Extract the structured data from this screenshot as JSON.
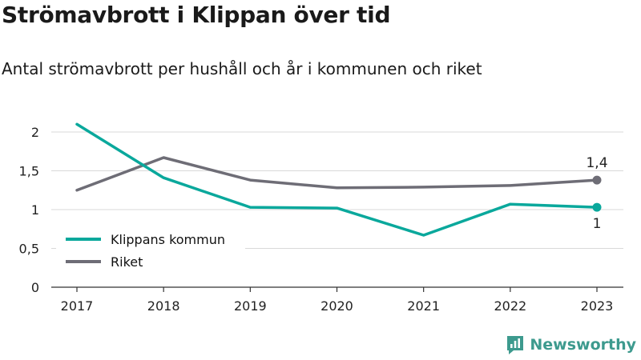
{
  "header": {
    "title": "Strömavbrott i Klippan över tid",
    "subtitle": "Antal strömavbrott per hushåll och år i kommunen och riket"
  },
  "brand": {
    "name": "Newsworthy",
    "icon": "newsworthy-logo-icon",
    "color": "#3d9a8e"
  },
  "chart_data": {
    "type": "line",
    "title": "Strömavbrott i Klippan över tid",
    "subtitle": "Antal strömavbrott per hushåll och år i kommunen och riket",
    "xlabel": "",
    "ylabel": "",
    "x": [
      "2017",
      "2018",
      "2019",
      "2020",
      "2021",
      "2022",
      "2023"
    ],
    "ylim": [
      0,
      2
    ],
    "y_ticks": [
      0,
      0.5,
      1,
      1.5,
      2
    ],
    "y_tick_labels": [
      "0",
      "0,5",
      "1",
      "1,5",
      "2"
    ],
    "grid": true,
    "legend_position": "bottom-left",
    "series": [
      {
        "name": "Klippans kommun",
        "color": "#0aa89c",
        "values": [
          2.1,
          1.41,
          1.03,
          1.02,
          0.67,
          1.07,
          1.03
        ],
        "end_label": "1"
      },
      {
        "name": "Riket",
        "color": "#6e6d76",
        "values": [
          1.25,
          1.67,
          1.38,
          1.28,
          1.29,
          1.31,
          1.38
        ],
        "end_label": "1,4"
      }
    ]
  }
}
